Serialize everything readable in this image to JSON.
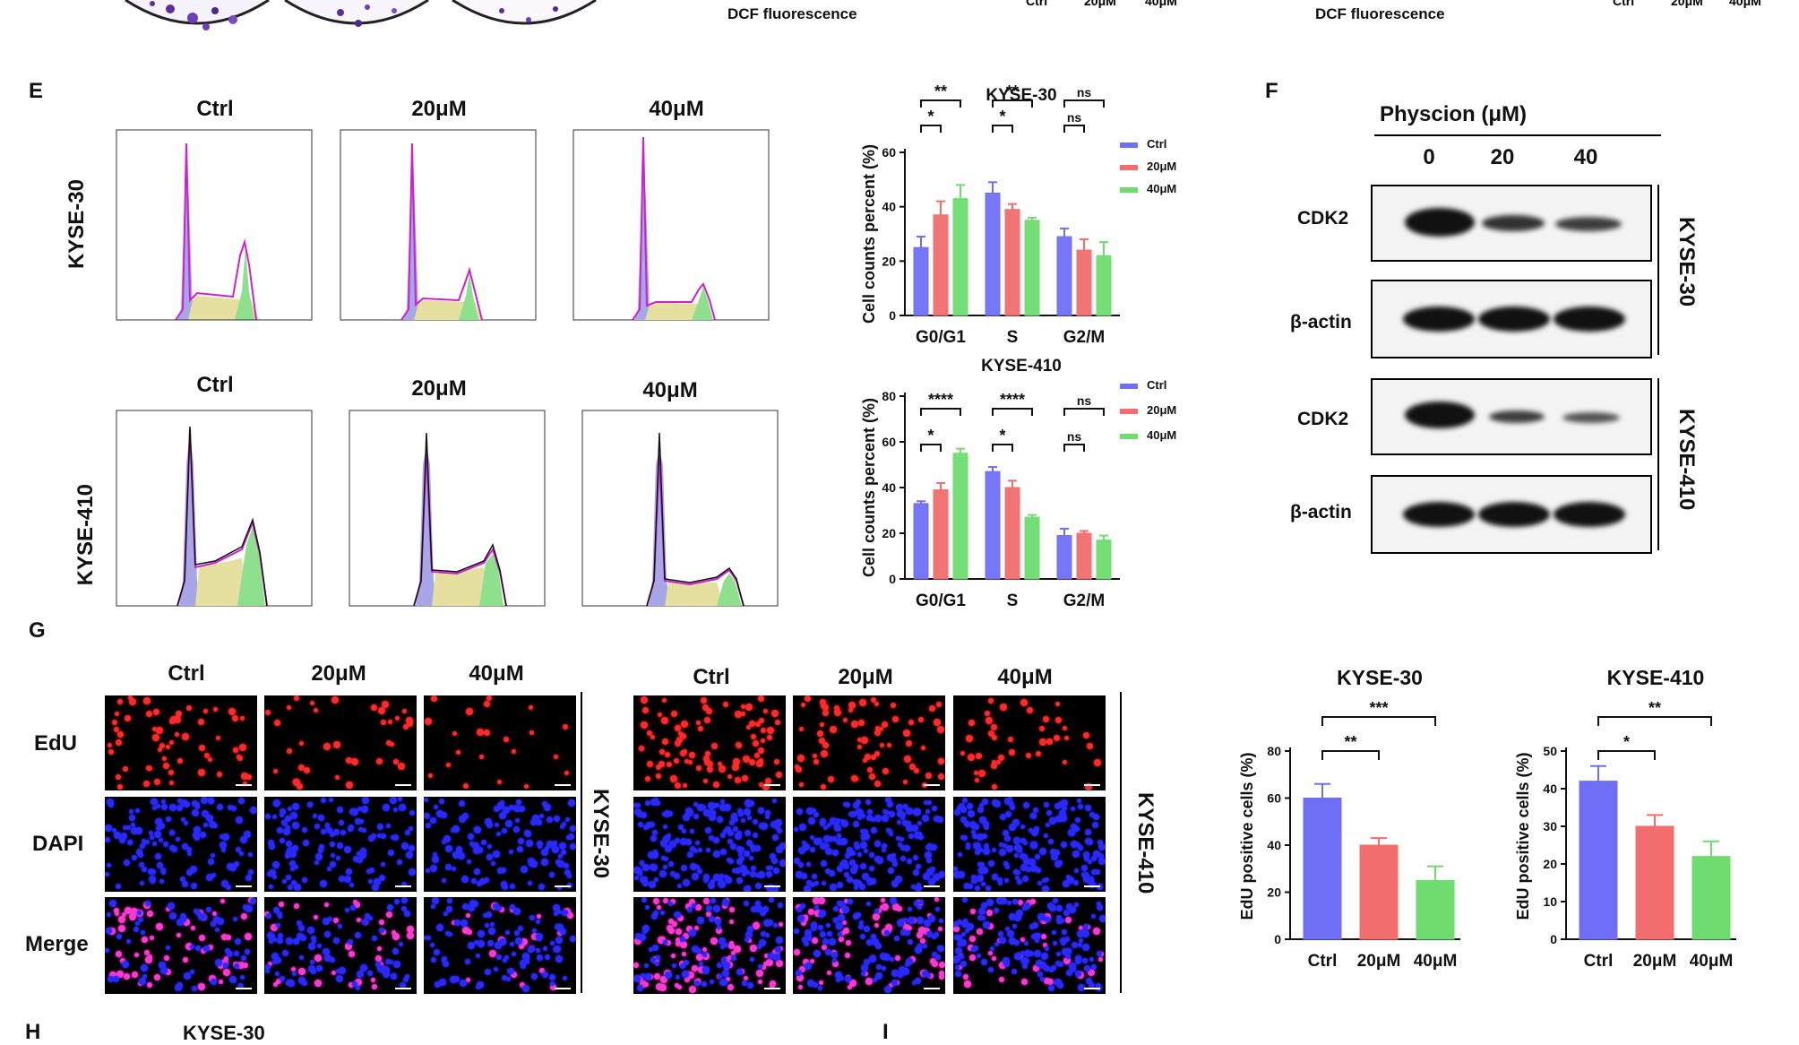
{
  "top": {
    "dcf_label_1": "DCF fluorescence",
    "dcf_label_2": "DCF fluorescence",
    "partial_ticks_1": [
      "Ctrl",
      "20μM",
      "40μM"
    ],
    "partial_ticks_2": [
      "Ctrl",
      "20μM",
      "40μM"
    ]
  },
  "panel_letters": {
    "E": "E",
    "F": "F",
    "G": "G",
    "H": "H",
    "I": "I"
  },
  "panel_e": {
    "conditions": [
      "Ctrl",
      "20μM",
      "40μM"
    ],
    "rows": [
      "KYSE-30",
      "KYSE-410"
    ]
  },
  "panel_f": {
    "title": "Physcion (μM)",
    "doses": [
      "0",
      "20",
      "40"
    ],
    "proteins": [
      "CDK2",
      "β-actin",
      "CDK2",
      "β-actin"
    ],
    "cell_lines": [
      "KYSE-30",
      "KYSE-410"
    ]
  },
  "panel_g": {
    "conditions": [
      "Ctrl",
      "20μM",
      "40μM"
    ],
    "stains": [
      "EdU",
      "DAPI",
      "Merge"
    ],
    "cell_lines": [
      "KYSE-30",
      "KYSE-410"
    ]
  },
  "panel_h": {
    "subtitle": "KYSE-30"
  },
  "colors": {
    "ctrl": "#6f6ff5",
    "m20": "#f26d6d",
    "m40": "#6fdc6f"
  },
  "chart_data": [
    {
      "type": "bar",
      "title": "KYSE-30",
      "categories": [
        "G0/G1",
        "S",
        "G2/M"
      ],
      "series": [
        {
          "name": "Ctrl",
          "values": [
            25,
            45,
            29
          ],
          "errors": [
            4,
            4,
            3
          ]
        },
        {
          "name": "20μM",
          "values": [
            37,
            39,
            24
          ],
          "errors": [
            5,
            2,
            4
          ]
        },
        {
          "name": "40μM",
          "values": [
            43,
            35,
            22
          ],
          "errors": [
            5,
            1,
            5
          ]
        }
      ],
      "ylabel": "Cell counts percent (%)",
      "ylim": [
        0,
        60
      ],
      "yticks": [
        0,
        20,
        40,
        60
      ],
      "significance": [
        {
          "category": "G0/G1",
          "inner": "*",
          "outer": "**"
        },
        {
          "category": "S",
          "inner": "*",
          "outer": "**"
        },
        {
          "category": "G2/M",
          "inner": "ns",
          "outer": "ns"
        }
      ],
      "legend": [
        "Ctrl",
        "20μM",
        "40μM"
      ]
    },
    {
      "type": "bar",
      "title": "KYSE-410",
      "categories": [
        "G0/G1",
        "S",
        "G2/M"
      ],
      "series": [
        {
          "name": "Ctrl",
          "values": [
            33,
            47,
            19
          ],
          "errors": [
            1,
            2,
            3
          ]
        },
        {
          "name": "20μM",
          "values": [
            39,
            40,
            20
          ],
          "errors": [
            3,
            3,
            1
          ]
        },
        {
          "name": "40μM",
          "values": [
            55,
            27,
            17
          ],
          "errors": [
            2,
            1,
            2
          ]
        }
      ],
      "ylabel": "Cell counts percent (%)",
      "ylim": [
        0,
        80
      ],
      "yticks": [
        0,
        20,
        40,
        60,
        80
      ],
      "significance": [
        {
          "category": "G0/G1",
          "inner": "*",
          "outer": "****"
        },
        {
          "category": "S",
          "inner": "*",
          "outer": "****"
        },
        {
          "category": "G2/M",
          "inner": "ns",
          "outer": "ns"
        }
      ],
      "legend": [
        "Ctrl",
        "20μM",
        "40μM"
      ]
    },
    {
      "type": "bar",
      "title": "KYSE-30",
      "categories": [
        "Ctrl",
        "20μM",
        "40μM"
      ],
      "values": [
        60,
        40,
        25
      ],
      "errors": [
        6,
        3,
        6
      ],
      "ylabel": "EdU positive cells (%)",
      "ylim": [
        0,
        80
      ],
      "yticks": [
        0,
        20,
        40,
        60,
        80
      ],
      "significance": [
        {
          "pair": [
            "Ctrl",
            "20μM"
          ],
          "label": "**"
        },
        {
          "pair": [
            "Ctrl",
            "40μM"
          ],
          "label": "***"
        }
      ]
    },
    {
      "type": "bar",
      "title": "KYSE-410",
      "categories": [
        "Ctrl",
        "20μM",
        "40μM"
      ],
      "values": [
        42,
        30,
        22
      ],
      "errors": [
        4,
        3,
        4
      ],
      "ylabel": "EdU positive cells (%)",
      "ylim": [
        0,
        50
      ],
      "yticks": [
        0,
        10,
        20,
        30,
        40,
        50
      ],
      "significance": [
        {
          "pair": [
            "Ctrl",
            "20μM"
          ],
          "label": "*"
        },
        {
          "pair": [
            "Ctrl",
            "40μM"
          ],
          "label": "**"
        }
      ]
    }
  ]
}
